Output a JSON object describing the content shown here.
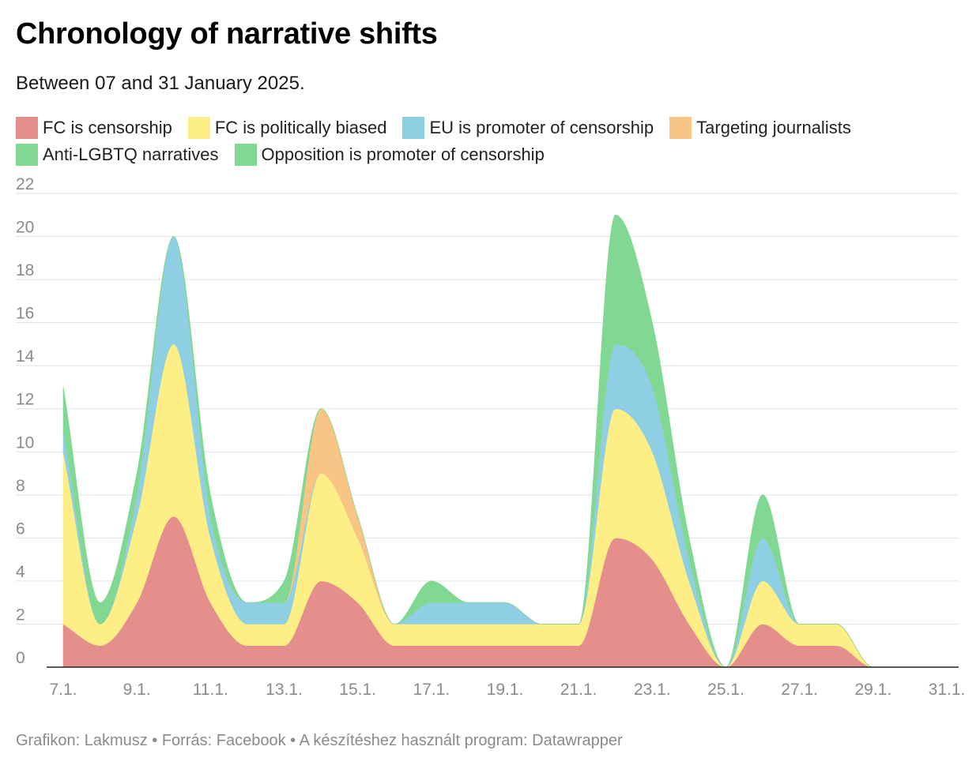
{
  "header": {
    "title": "Chronology of narrative shifts",
    "subtitle": "Between 07 and 31 January 2025."
  },
  "footer": {
    "source": "Grafikon: Lakmusz • Forrás: Facebook • A készítéshez használt program: Datawrapper"
  },
  "chart_data": {
    "type": "area",
    "stacked": true,
    "smooth": true,
    "title": "Chronology of narrative shifts",
    "subtitle": "Between 07 and 31 January 2025.",
    "xlabel": "",
    "ylabel": "",
    "x": [
      "7.1.",
      "8.1.",
      "9.1.",
      "10.1.",
      "11.1.",
      "12.1.",
      "13.1.",
      "14.1.",
      "15.1.",
      "16.1.",
      "17.1.",
      "18.1.",
      "19.1.",
      "20.1.",
      "21.1.",
      "22.1.",
      "23.1.",
      "24.1.",
      "25.1.",
      "26.1.",
      "27.1.",
      "28.1.",
      "29.1.",
      "30.1.",
      "31.1."
    ],
    "x_tick_labels": [
      "7.1.",
      "9.1.",
      "11.1.",
      "13.1.",
      "15.1.",
      "17.1.",
      "19.1.",
      "21.1.",
      "23.1.",
      "25.1.",
      "27.1.",
      "29.1.",
      "31.1."
    ],
    "ylim": [
      0,
      22
    ],
    "y_ticks": [
      0,
      2,
      4,
      6,
      8,
      10,
      12,
      14,
      16,
      18,
      20,
      22
    ],
    "grid": true,
    "legend_position": "top-left",
    "series": [
      {
        "name": "FC is censorship",
        "color": "#e58f8d",
        "values": [
          2,
          1,
          3,
          7,
          3,
          1,
          1,
          4,
          3,
          1,
          1,
          1,
          1,
          1,
          1,
          6,
          5,
          2,
          0,
          2,
          1,
          1,
          0,
          0,
          0
        ]
      },
      {
        "name": "FC is politically biased",
        "color": "#fdee85",
        "values": [
          8,
          1,
          4,
          8,
          3,
          1,
          1,
          5,
          3,
          1,
          1,
          1,
          1,
          1,
          1,
          6,
          5,
          2,
          0,
          2,
          1,
          1,
          0,
          0,
          0
        ]
      },
      {
        "name": "EU is promoter of censorship",
        "color": "#8fcfe3",
        "values": [
          1,
          0,
          1,
          5,
          1,
          1,
          1,
          0,
          0,
          0,
          1,
          1,
          1,
          0,
          0,
          3,
          3,
          1,
          0,
          2,
          0,
          0,
          0,
          0,
          0
        ]
      },
      {
        "name": "Targeting journalists",
        "color": "#f8c584",
        "values": [
          0,
          0,
          0,
          0,
          0,
          0,
          0,
          3,
          1,
          0,
          0,
          0,
          0,
          0,
          0,
          0,
          0,
          0,
          0,
          0,
          0,
          0,
          0,
          0,
          0
        ]
      },
      {
        "name": "Anti-LGBTQ narratives",
        "color": "#80d893",
        "values": [
          2,
          1,
          1,
          0,
          1,
          0,
          0,
          0,
          0,
          0,
          1,
          0,
          0,
          0,
          0,
          6,
          3,
          1,
          0,
          2,
          0,
          0,
          0,
          0,
          0
        ]
      },
      {
        "name": "Opposition is promoter of censorship",
        "color": "#80d893",
        "values": [
          0,
          0,
          0,
          0,
          0,
          0,
          1,
          0,
          0,
          0,
          0,
          0,
          0,
          0,
          0,
          0,
          0,
          0,
          0,
          0,
          0,
          0,
          0,
          0,
          0
        ]
      }
    ]
  }
}
